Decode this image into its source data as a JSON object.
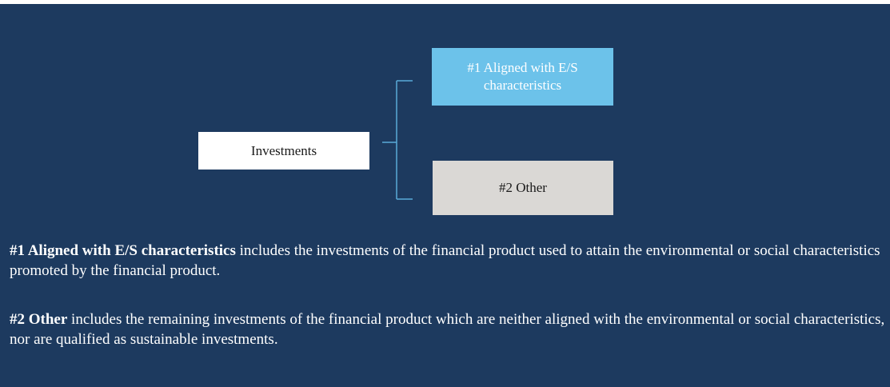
{
  "nodes": [
    {
      "label": "Investments"
    },
    {
      "label": "#1 Aligned with E/S characteristics"
    },
    {
      "label": "#2 Other"
    }
  ],
  "notes": [
    {
      "term": "#1 Aligned with E/S characteristics",
      "text": "includes the investments of the financial product used to attain the environmental or social characteristics promoted by the financial product."
    },
    {
      "term": "#2 Other",
      "text": "includes the remaining investments of the financial product which are neither aligned with the environmental or social characteristics, nor are qualified as sustainable investments."
    }
  ]
}
